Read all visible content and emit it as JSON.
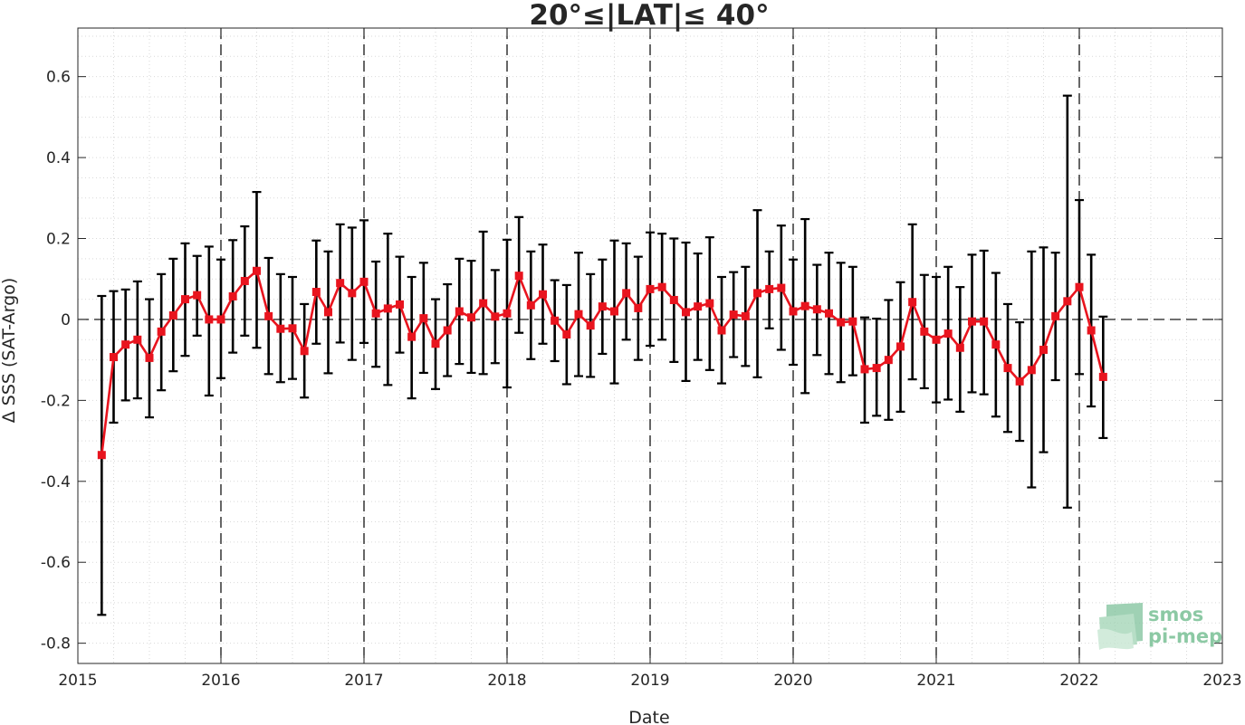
{
  "colors": {
    "series": "#e8141e",
    "errorbar": "#000000",
    "axis": "#262626",
    "logo": "#8cc9a4"
  },
  "logo": {
    "line1": "smos",
    "line2": "pi-mep"
  },
  "chart_data": {
    "type": "line",
    "title": "20°≤|LAT|≤ 40°",
    "xlabel": "Date",
    "ylabel": "Δ SSS (SAT-Argo)",
    "x_scale": "date",
    "xlim": [
      "2015-01-01",
      "2023-01-01"
    ],
    "ylim": [
      -0.85,
      0.72
    ],
    "xticks": [
      "2015",
      "2016",
      "2017",
      "2018",
      "2019",
      "2020",
      "2021",
      "2022",
      "2023"
    ],
    "yticks": [
      "-0.8",
      "-0.6",
      "-0.4",
      "-0.2",
      "0",
      "0.2",
      "0.4",
      "0.6"
    ],
    "grid": "minor dotted",
    "year_markers": "dashed vertical lines at year starts",
    "zero_line": "dashed horizontal line at 0",
    "legend": "none",
    "series": [
      {
        "style": "red line with square markers and black error bars",
        "points": [
          {
            "x": "2015-03",
            "y": -0.335,
            "lo": -0.73,
            "hi": 0.058
          },
          {
            "x": "2015-04",
            "y": -0.093,
            "lo": -0.255,
            "hi": 0.07
          },
          {
            "x": "2015-05",
            "y": -0.062,
            "lo": -0.2,
            "hi": 0.074
          },
          {
            "x": "2015-06",
            "y": -0.05,
            "lo": -0.195,
            "hi": 0.094
          },
          {
            "x": "2015-07",
            "y": -0.095,
            "lo": -0.242,
            "hi": 0.05
          },
          {
            "x": "2015-08",
            "y": -0.03,
            "lo": -0.175,
            "hi": 0.112
          },
          {
            "x": "2015-09",
            "y": 0.01,
            "lo": -0.128,
            "hi": 0.15
          },
          {
            "x": "2015-10",
            "y": 0.05,
            "lo": -0.09,
            "hi": 0.188
          },
          {
            "x": "2015-11",
            "y": 0.06,
            "lo": -0.04,
            "hi": 0.157
          },
          {
            "x": "2015-12",
            "y": 0.0,
            "lo": -0.188,
            "hi": 0.18
          },
          {
            "x": "2016-01",
            "y": 0.0,
            "lo": -0.145,
            "hi": 0.148
          },
          {
            "x": "2016-02",
            "y": 0.057,
            "lo": -0.082,
            "hi": 0.196
          },
          {
            "x": "2016-03",
            "y": 0.095,
            "lo": -0.04,
            "hi": 0.23
          },
          {
            "x": "2016-04",
            "y": 0.12,
            "lo": -0.07,
            "hi": 0.315
          },
          {
            "x": "2016-05",
            "y": 0.008,
            "lo": -0.135,
            "hi": 0.152
          },
          {
            "x": "2016-06",
            "y": -0.023,
            "lo": -0.155,
            "hi": 0.112
          },
          {
            "x": "2016-07",
            "y": -0.022,
            "lo": -0.147,
            "hi": 0.105
          },
          {
            "x": "2016-08",
            "y": -0.078,
            "lo": -0.193,
            "hi": 0.038
          },
          {
            "x": "2016-09",
            "y": 0.068,
            "lo": -0.06,
            "hi": 0.195
          },
          {
            "x": "2016-10",
            "y": 0.018,
            "lo": -0.133,
            "hi": 0.168
          },
          {
            "x": "2016-11",
            "y": 0.09,
            "lo": -0.057,
            "hi": 0.235
          },
          {
            "x": "2016-12",
            "y": 0.065,
            "lo": -0.1,
            "hi": 0.227
          },
          {
            "x": "2017-01",
            "y": 0.093,
            "lo": -0.058,
            "hi": 0.245
          },
          {
            "x": "2017-02",
            "y": 0.015,
            "lo": -0.117,
            "hi": 0.143
          },
          {
            "x": "2017-03",
            "y": 0.027,
            "lo": -0.162,
            "hi": 0.212
          },
          {
            "x": "2017-04",
            "y": 0.037,
            "lo": -0.082,
            "hi": 0.155
          },
          {
            "x": "2017-05",
            "y": -0.043,
            "lo": -0.195,
            "hi": 0.105
          },
          {
            "x": "2017-06",
            "y": 0.003,
            "lo": -0.132,
            "hi": 0.14
          },
          {
            "x": "2017-07",
            "y": -0.06,
            "lo": -0.172,
            "hi": 0.05
          },
          {
            "x": "2017-08",
            "y": -0.027,
            "lo": -0.14,
            "hi": 0.087
          },
          {
            "x": "2017-09",
            "y": 0.02,
            "lo": -0.11,
            "hi": 0.15
          },
          {
            "x": "2017-10",
            "y": 0.005,
            "lo": -0.132,
            "hi": 0.145
          },
          {
            "x": "2017-11",
            "y": 0.04,
            "lo": -0.135,
            "hi": 0.217
          },
          {
            "x": "2017-12",
            "y": 0.007,
            "lo": -0.108,
            "hi": 0.122
          },
          {
            "x": "2018-01",
            "y": 0.015,
            "lo": -0.168,
            "hi": 0.197
          },
          {
            "x": "2018-02",
            "y": 0.108,
            "lo": -0.033,
            "hi": 0.253
          },
          {
            "x": "2018-03",
            "y": 0.035,
            "lo": -0.098,
            "hi": 0.168
          },
          {
            "x": "2018-04",
            "y": 0.062,
            "lo": -0.06,
            "hi": 0.185
          },
          {
            "x": "2018-05",
            "y": -0.003,
            "lo": -0.103,
            "hi": 0.097
          },
          {
            "x": "2018-06",
            "y": -0.037,
            "lo": -0.16,
            "hi": 0.085
          },
          {
            "x": "2018-07",
            "y": 0.013,
            "lo": -0.14,
            "hi": 0.165
          },
          {
            "x": "2018-08",
            "y": -0.015,
            "lo": -0.142,
            "hi": 0.112
          },
          {
            "x": "2018-09",
            "y": 0.032,
            "lo": -0.085,
            "hi": 0.148
          },
          {
            "x": "2018-10",
            "y": 0.02,
            "lo": -0.158,
            "hi": 0.195
          },
          {
            "x": "2018-11",
            "y": 0.065,
            "lo": -0.05,
            "hi": 0.188
          },
          {
            "x": "2018-12",
            "y": 0.028,
            "lo": -0.1,
            "hi": 0.155
          },
          {
            "x": "2019-01",
            "y": 0.075,
            "lo": -0.065,
            "hi": 0.215
          },
          {
            "x": "2019-02",
            "y": 0.08,
            "lo": -0.05,
            "hi": 0.212
          },
          {
            "x": "2019-03",
            "y": 0.048,
            "lo": -0.105,
            "hi": 0.2
          },
          {
            "x": "2019-04",
            "y": 0.018,
            "lo": -0.152,
            "hi": 0.19
          },
          {
            "x": "2019-05",
            "y": 0.032,
            "lo": -0.1,
            "hi": 0.163
          },
          {
            "x": "2019-06",
            "y": 0.04,
            "lo": -0.125,
            "hi": 0.203
          },
          {
            "x": "2019-07",
            "y": -0.027,
            "lo": -0.158,
            "hi": 0.105
          },
          {
            "x": "2019-08",
            "y": 0.012,
            "lo": -0.093,
            "hi": 0.117
          },
          {
            "x": "2019-09",
            "y": 0.008,
            "lo": -0.115,
            "hi": 0.13
          },
          {
            "x": "2019-10",
            "y": 0.065,
            "lo": -0.143,
            "hi": 0.27
          },
          {
            "x": "2019-11",
            "y": 0.075,
            "lo": -0.022,
            "hi": 0.168
          },
          {
            "x": "2019-12",
            "y": 0.078,
            "lo": -0.075,
            "hi": 0.232
          },
          {
            "x": "2020-01",
            "y": 0.02,
            "lo": -0.112,
            "hi": 0.148
          },
          {
            "x": "2020-02",
            "y": 0.033,
            "lo": -0.182,
            "hi": 0.248
          },
          {
            "x": "2020-03",
            "y": 0.025,
            "lo": -0.088,
            "hi": 0.135
          },
          {
            "x": "2020-04",
            "y": 0.015,
            "lo": -0.135,
            "hi": 0.165
          },
          {
            "x": "2020-05",
            "y": -0.007,
            "lo": -0.155,
            "hi": 0.14
          },
          {
            "x": "2020-06",
            "y": -0.005,
            "lo": -0.138,
            "hi": 0.13
          },
          {
            "x": "2020-07",
            "y": -0.123,
            "lo": -0.255,
            "hi": 0.005
          },
          {
            "x": "2020-08",
            "y": -0.12,
            "lo": -0.238,
            "hi": 0.002
          },
          {
            "x": "2020-09",
            "y": -0.1,
            "lo": -0.248,
            "hi": 0.048
          },
          {
            "x": "2020-10",
            "y": -0.067,
            "lo": -0.228,
            "hi": 0.092
          },
          {
            "x": "2020-11",
            "y": 0.043,
            "lo": -0.148,
            "hi": 0.235
          },
          {
            "x": "2020-12",
            "y": -0.03,
            "lo": -0.17,
            "hi": 0.11
          },
          {
            "x": "2021-01",
            "y": -0.05,
            "lo": -0.205,
            "hi": 0.105
          },
          {
            "x": "2021-02",
            "y": -0.035,
            "lo": -0.198,
            "hi": 0.13
          },
          {
            "x": "2021-03",
            "y": -0.07,
            "lo": -0.228,
            "hi": 0.08
          },
          {
            "x": "2021-04",
            "y": -0.005,
            "lo": -0.18,
            "hi": 0.16
          },
          {
            "x": "2021-05",
            "y": -0.005,
            "lo": -0.185,
            "hi": 0.17
          },
          {
            "x": "2021-06",
            "y": -0.062,
            "lo": -0.24,
            "hi": 0.115
          },
          {
            "x": "2021-07",
            "y": -0.12,
            "lo": -0.278,
            "hi": 0.038
          },
          {
            "x": "2021-08",
            "y": -0.153,
            "lo": -0.3,
            "hi": -0.007
          },
          {
            "x": "2021-09",
            "y": -0.125,
            "lo": -0.415,
            "hi": 0.168
          },
          {
            "x": "2021-10",
            "y": -0.075,
            "lo": -0.328,
            "hi": 0.178
          },
          {
            "x": "2021-11",
            "y": 0.008,
            "lo": -0.15,
            "hi": 0.165
          },
          {
            "x": "2021-12",
            "y": 0.045,
            "lo": -0.465,
            "hi": 0.553
          },
          {
            "x": "2022-01",
            "y": 0.08,
            "lo": -0.135,
            "hi": 0.295
          },
          {
            "x": "2022-02",
            "y": -0.027,
            "lo": -0.215,
            "hi": 0.16
          },
          {
            "x": "2022-03",
            "y": -0.142,
            "lo": -0.293,
            "hi": 0.007
          }
        ]
      }
    ]
  }
}
